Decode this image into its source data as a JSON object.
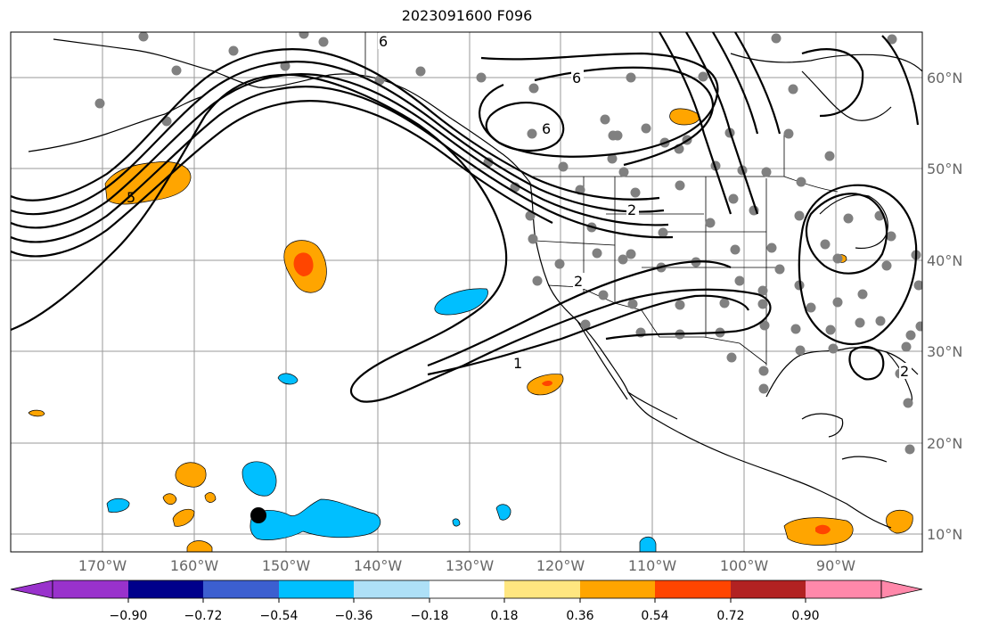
{
  "title": "2023091600 F096",
  "map": {
    "lon_labels": [
      "170°W",
      "160°W",
      "150°W",
      "140°W",
      "130°W",
      "120°W",
      "110°W",
      "100°W",
      "90°W"
    ],
    "lat_labels": [
      "60°N",
      "50°N",
      "40°N",
      "30°N",
      "20°N",
      "10°N"
    ],
    "contour_labels": [
      "6",
      "6",
      "6",
      "2",
      "2",
      "1",
      "5",
      "2"
    ],
    "marker_point": {
      "lon": -152.8,
      "lat": 12.0
    }
  },
  "colorbar": {
    "levels": [
      "−0.90",
      "−0.72",
      "−0.54",
      "−0.36",
      "−0.18",
      "0.18",
      "0.36",
      "0.54",
      "0.72",
      "0.90"
    ],
    "colors": [
      "#9932cc",
      "#00008b",
      "#3c5fd0",
      "#00bfff",
      "#aee0f7",
      "#ffffff",
      "#ffe680",
      "#ffa500",
      "#ff4500",
      "#b22222",
      "#ff88aa"
    ]
  }
}
